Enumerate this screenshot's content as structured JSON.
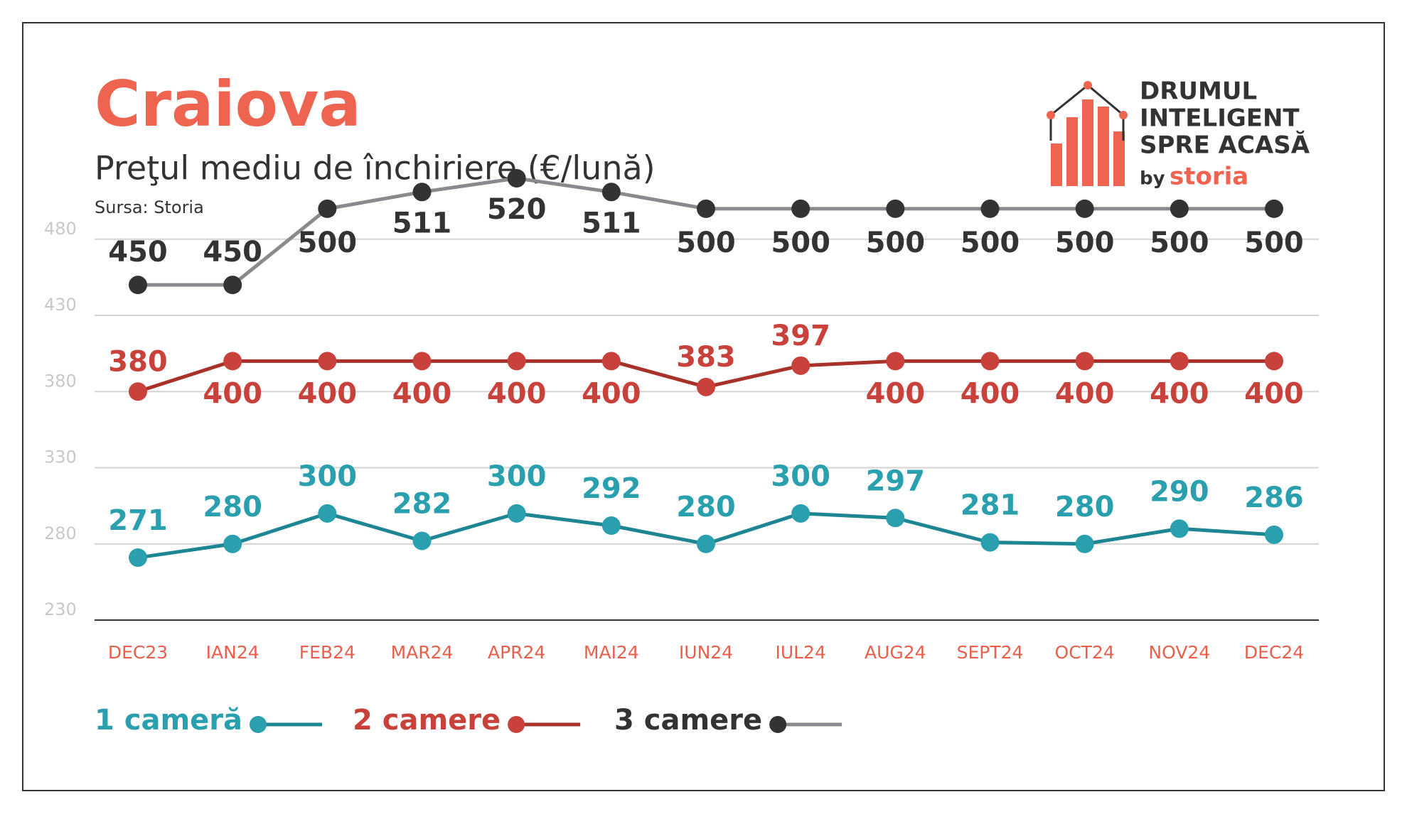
{
  "chart_data": {
    "type": "line",
    "title": "Craiova",
    "subtitle": "Preţul mediu de închiriere (€/lună)",
    "source": "Sursa: Storia",
    "categories": [
      "DEC23",
      "IAN24",
      "FEB24",
      "MAR24",
      "APR24",
      "MAI24",
      "IUN24",
      "IUL24",
      "AUG24",
      "SEPT24",
      "OCT24",
      "NOV24",
      "DEC24"
    ],
    "series": [
      {
        "name": "1 cameră",
        "color": "#1e8593",
        "label_color": "#2a9fae",
        "values": [
          271,
          280,
          300,
          282,
          300,
          292,
          280,
          300,
          297,
          281,
          280,
          290,
          286
        ]
      },
      {
        "name": "2 camere",
        "color": "#a8322a",
        "label_color": "#c8413a",
        "values": [
          380,
          400,
          400,
          400,
          400,
          400,
          383,
          397,
          400,
          400,
          400,
          400,
          400
        ]
      },
      {
        "name": "3 camere",
        "color": "#8a8a8e",
        "label_color": "#333333",
        "values": [
          450,
          450,
          500,
          511,
          520,
          511,
          500,
          500,
          500,
          500,
          500,
          500,
          500
        ]
      }
    ],
    "ylim": [
      230,
      520
    ],
    "yticks": [
      230,
      280,
      330,
      380,
      430,
      480
    ],
    "grid": true
  },
  "logo": {
    "lines": [
      "DRUMUL",
      "INTELIGENT",
      "SPRE ACASĂ"
    ],
    "by": "by",
    "brand": "storia"
  }
}
